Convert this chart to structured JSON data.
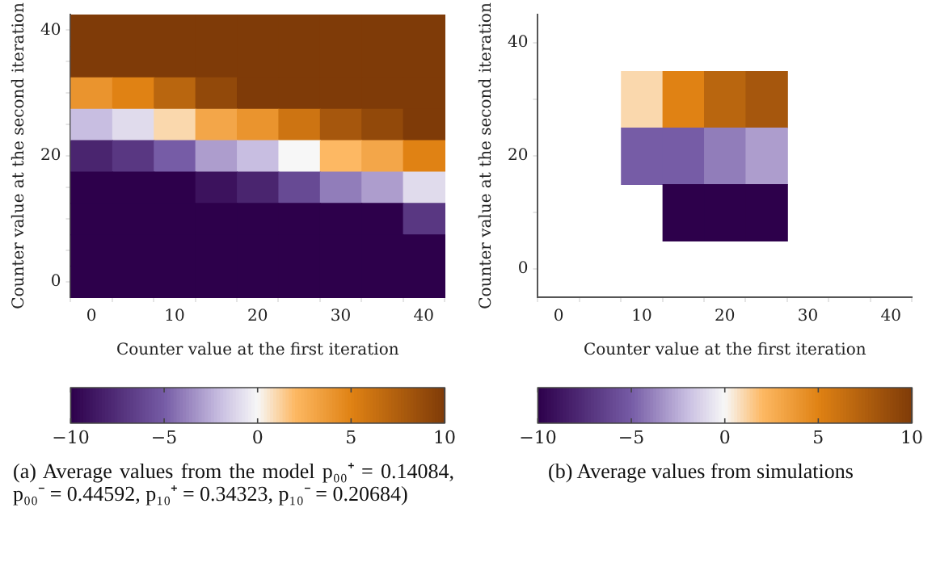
{
  "chart_data": [
    {
      "type": "heatmap",
      "xlabel": "Counter value at the first iteration",
      "ylabel": "Counter value at the second iteration",
      "categories": [
        "0",
        null,
        "10",
        null,
        "20",
        null,
        "30",
        null,
        "40"
      ],
      "y_categories": [
        "40",
        null,
        null,
        null,
        "20",
        null,
        null,
        null,
        "0"
      ],
      "cells": [
        [
          10,
          10,
          10,
          10,
          10,
          10,
          10,
          10,
          10
        ],
        [
          10,
          10,
          10,
          10,
          10,
          10,
          10,
          10,
          10
        ],
        [
          4,
          5,
          7,
          9,
          10,
          10,
          10,
          10,
          10
        ],
        [
          -2,
          -1,
          1,
          3,
          4,
          6,
          8,
          9,
          10
        ],
        [
          -8,
          -7,
          -5,
          -3,
          -2,
          0,
          2,
          3,
          5
        ],
        [
          -10,
          -10,
          -10,
          -9,
          -8,
          -6,
          -4,
          -3,
          -1
        ],
        [
          -10,
          -10,
          -10,
          -10,
          -10,
          -10,
          -10,
          -10,
          -7
        ],
        [
          -10,
          -10,
          -10,
          -10,
          -10,
          -10,
          -10,
          -10,
          -10
        ],
        [
          -10,
          -10,
          -10,
          -10,
          -10,
          -10,
          -10,
          -10,
          -10
        ]
      ],
      "clim": [
        -10,
        10
      ],
      "cticks": [
        -10,
        -5,
        0,
        5,
        10
      ],
      "annotations": [
        "(a) Average values from the model p₀₀⁺ = 0.14084, p₀₀⁻ = 0.44592, p₁₀⁺ = 0.34323, p₁₀⁻ = 0.20684)"
      ]
    },
    {
      "type": "heatmap",
      "xlabel": "Counter value at the first iteration",
      "ylabel": "Counter value at the second iteration",
      "categories": [
        "0",
        null,
        "10",
        null,
        "20",
        null,
        "30",
        null,
        "40"
      ],
      "y_categories": [
        "40",
        null,
        "20",
        null,
        "0"
      ],
      "cells": [
        [
          null,
          null,
          null,
          null,
          null,
          null,
          null,
          null,
          null
        ],
        [
          null,
          null,
          1,
          5,
          7,
          8,
          null,
          null,
          null
        ],
        [
          null,
          null,
          -5,
          -5,
          -4,
          -3,
          null,
          null,
          null
        ],
        [
          null,
          null,
          null,
          -10,
          -10,
          -10,
          null,
          null,
          null
        ],
        [
          null,
          null,
          null,
          null,
          null,
          null,
          null,
          null,
          null
        ]
      ],
      "clim": [
        -10,
        10
      ],
      "cticks": [
        -10,
        -5,
        0,
        5,
        10
      ],
      "annotations": [
        "(b) Average values from simulations"
      ]
    }
  ]
}
